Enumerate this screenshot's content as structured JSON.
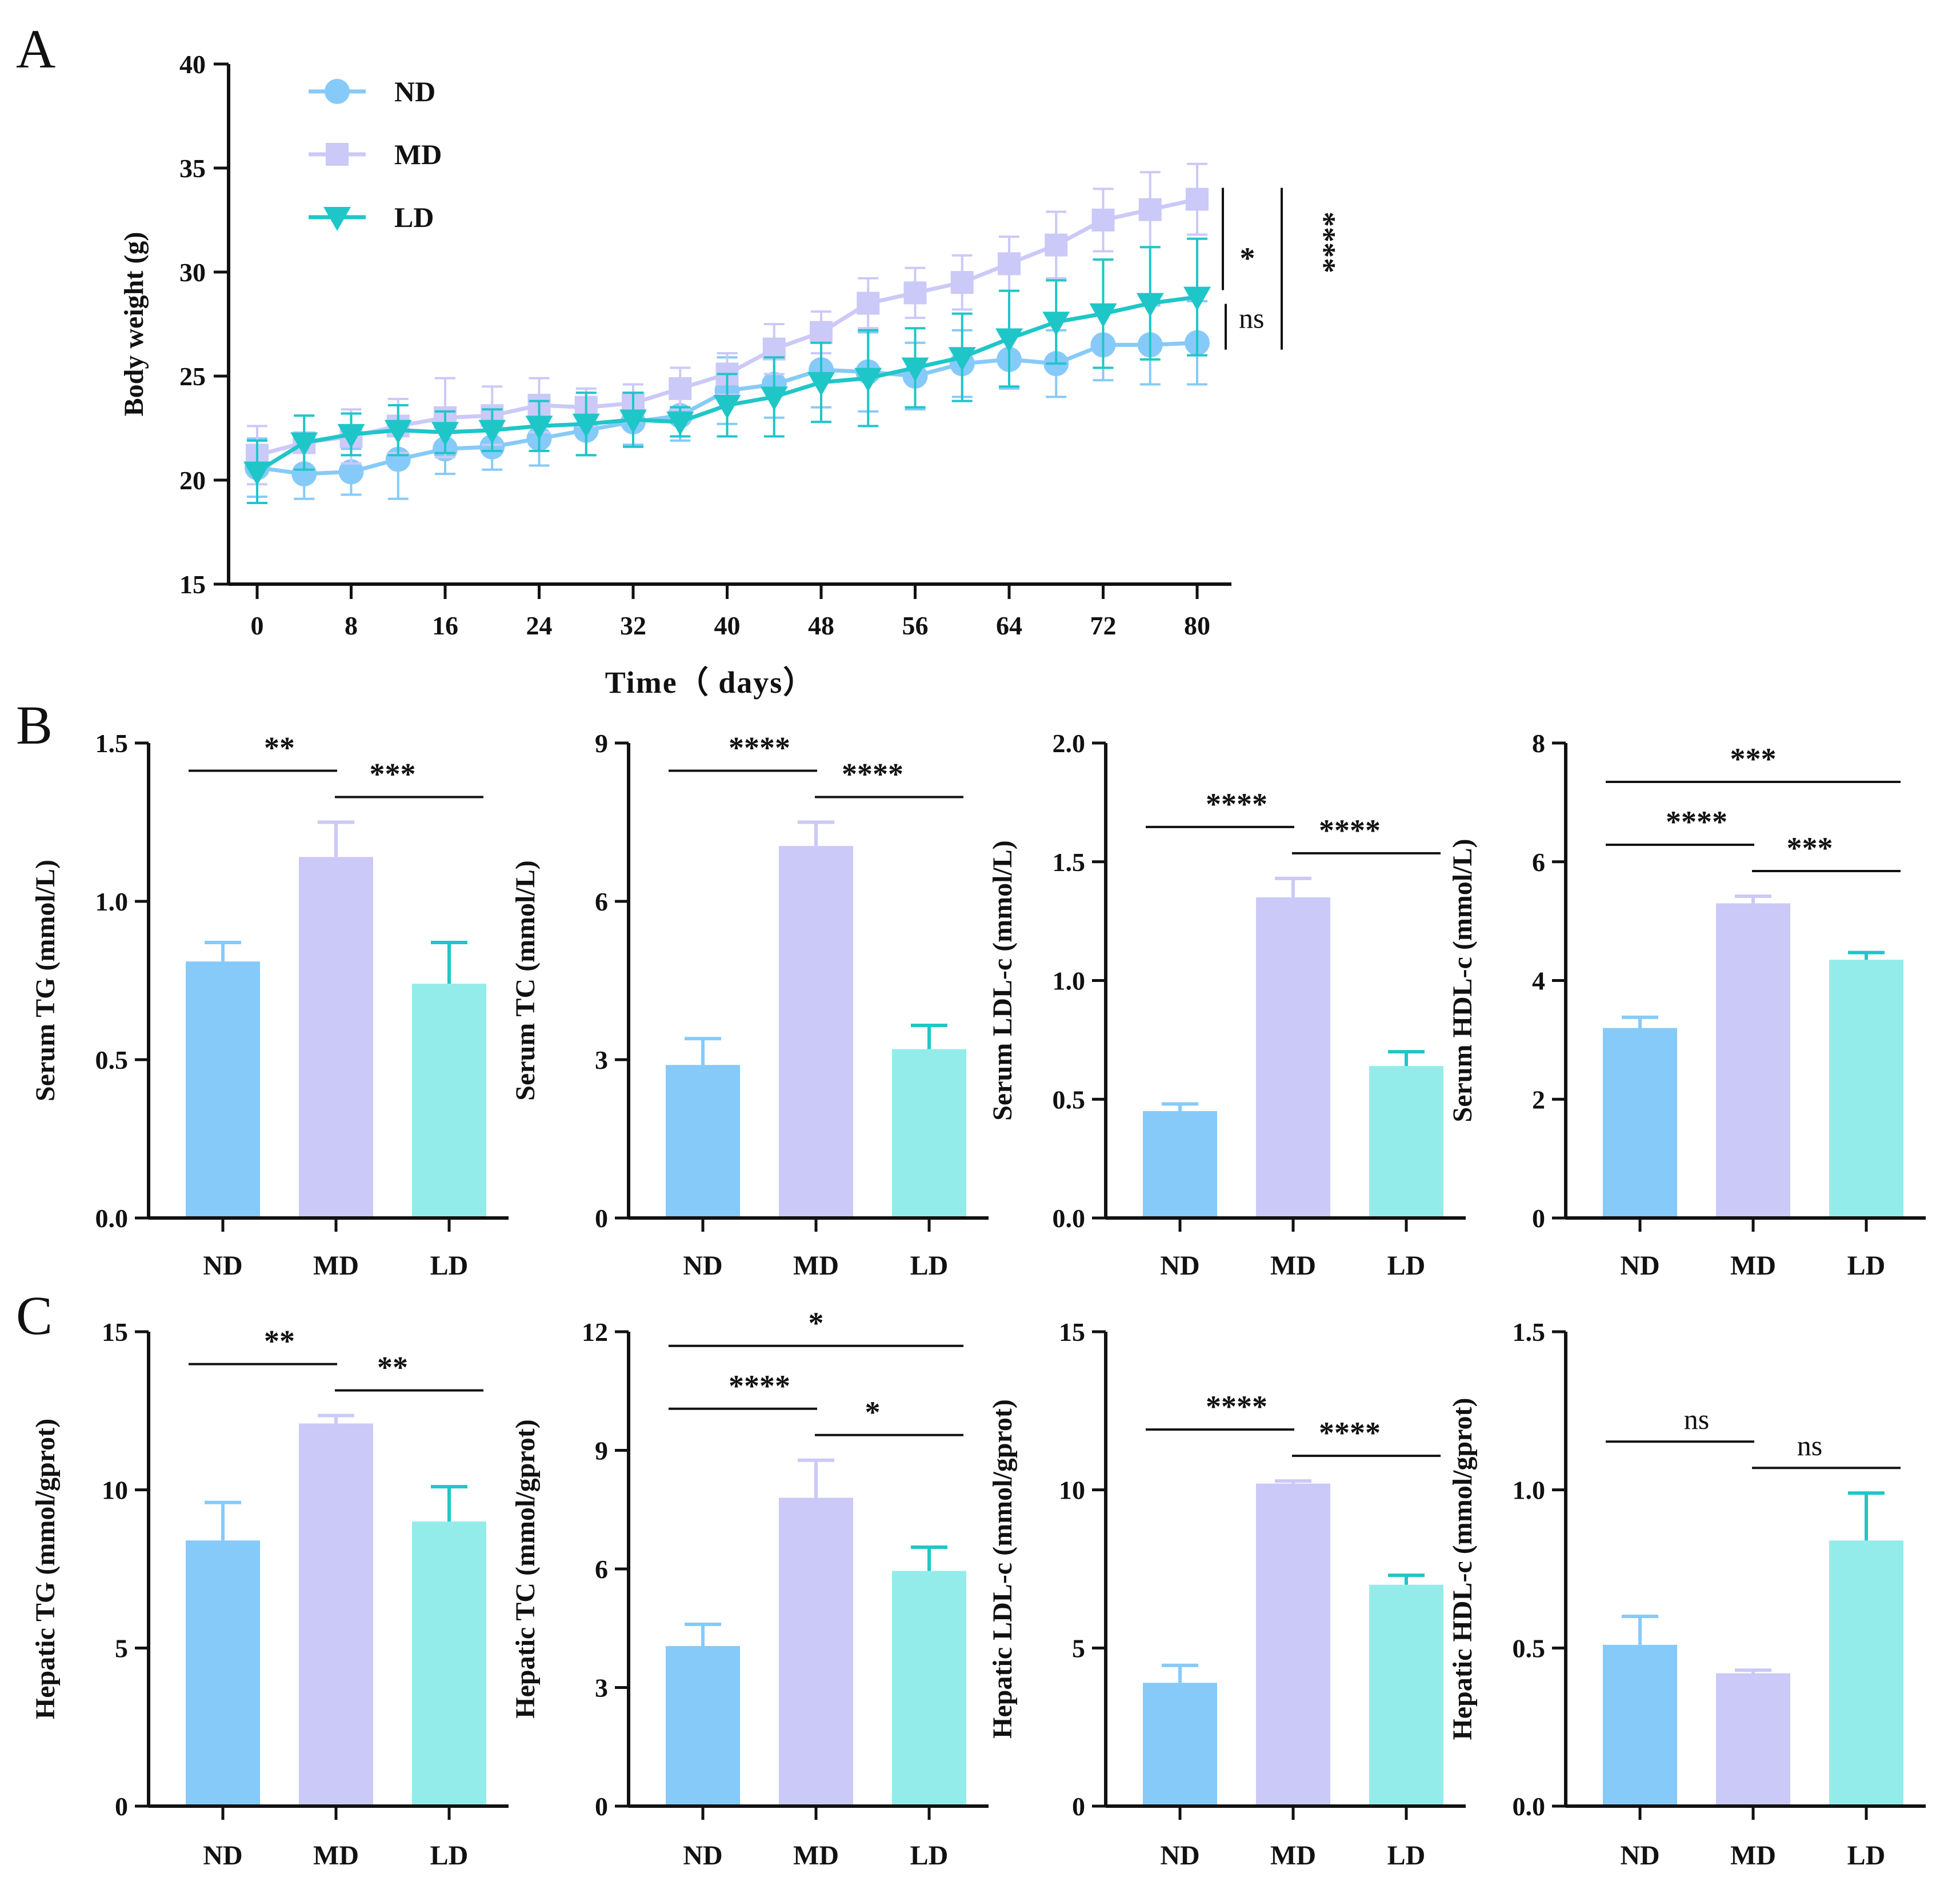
{
  "colors": {
    "ND": "#86CAF9",
    "MD": "#CBC9F8",
    "LD": "#1FC6C8",
    "LD_bar": "#94ECEA",
    "axis": "#111111"
  },
  "chart_data": [
    {
      "id": "A",
      "panel_label": "A",
      "type": "line",
      "xlabel": "Time（ days）",
      "ylabel": "Body weight (g)",
      "xlim": [
        0,
        80
      ],
      "ylim": [
        15,
        40
      ],
      "xticks": [
        0,
        8,
        16,
        24,
        32,
        40,
        48,
        56,
        64,
        72,
        80
      ],
      "yticks": [
        15,
        20,
        25,
        30,
        35,
        40
      ],
      "x": [
        0,
        4,
        8,
        12,
        16,
        20,
        24,
        28,
        32,
        36,
        40,
        44,
        48,
        52,
        56,
        60,
        64,
        68,
        72,
        76,
        80
      ],
      "series": [
        {
          "name": "ND",
          "marker": "circle",
          "values": [
            20.6,
            20.3,
            20.4,
            21.0,
            21.5,
            21.6,
            22.0,
            22.4,
            22.8,
            23.1,
            24.3,
            24.6,
            25.3,
            25.2,
            25.0,
            25.6,
            25.8,
            25.6,
            26.5,
            26.5,
            26.6
          ],
          "errors": [
            1.4,
            1.2,
            1.1,
            1.9,
            1.2,
            1.1,
            1.3,
            1.2,
            1.1,
            1.2,
            1.6,
            1.6,
            1.8,
            1.9,
            1.6,
            1.6,
            1.4,
            1.6,
            1.7,
            1.9,
            2.0
          ]
        },
        {
          "name": "MD",
          "marker": "square",
          "values": [
            21.2,
            21.8,
            22.1,
            22.6,
            23.0,
            23.1,
            23.6,
            23.5,
            23.7,
            24.4,
            25.1,
            26.3,
            27.1,
            28.5,
            29.0,
            29.5,
            30.4,
            31.3,
            32.5,
            33.0,
            33.5
          ],
          "errors": [
            1.4,
            1.3,
            1.3,
            1.3,
            1.9,
            1.4,
            1.3,
            0.9,
            0.9,
            1.0,
            1.0,
            1.2,
            1.0,
            1.2,
            1.2,
            1.3,
            1.3,
            1.6,
            1.5,
            1.8,
            1.7
          ]
        },
        {
          "name": "LD",
          "marker": "triangle-down",
          "values": [
            20.4,
            21.8,
            22.2,
            22.4,
            22.3,
            22.4,
            22.6,
            22.7,
            22.9,
            22.8,
            23.6,
            24.0,
            24.7,
            24.9,
            25.4,
            25.9,
            26.8,
            27.6,
            28.0,
            28.5,
            28.8
          ],
          "errors": [
            1.5,
            1.3,
            1.0,
            1.2,
            1.0,
            1.0,
            1.2,
            1.5,
            1.3,
            0.7,
            1.5,
            1.9,
            1.9,
            2.3,
            1.9,
            2.1,
            2.3,
            2.0,
            2.6,
            2.7,
            2.8
          ]
        }
      ],
      "legend": [
        "ND",
        "MD",
        "LD"
      ],
      "legend_position": "top-left",
      "annotations": [
        {
          "label": "*",
          "between": [
            "MD",
            "LD"
          ]
        },
        {
          "label": "ns",
          "between": [
            "LD",
            "ND"
          ]
        },
        {
          "label": "****",
          "between": [
            "MD",
            "ND"
          ]
        }
      ]
    },
    {
      "id": "B1",
      "panel_label": "B",
      "type": "bar",
      "ylabel": "Serum TG (mmol/L)",
      "categories": [
        "ND",
        "MD",
        "LD"
      ],
      "values": [
        0.81,
        1.14,
        0.74
      ],
      "errors": [
        0.06,
        0.11,
        0.13
      ],
      "ylim": [
        0,
        1.5
      ],
      "yticks": [
        0.0,
        0.5,
        1.0,
        1.5
      ],
      "tick_decimals": 1,
      "annotations": [
        {
          "from": 0,
          "to": 1,
          "label": "**"
        },
        {
          "from": 1,
          "to": 2,
          "label": "***"
        }
      ]
    },
    {
      "id": "B2",
      "panel_label": "",
      "type": "bar",
      "ylabel": "Serum TC (mmol/L)",
      "categories": [
        "ND",
        "MD",
        "LD"
      ],
      "values": [
        2.9,
        7.05,
        3.2
      ],
      "errors": [
        0.5,
        0.45,
        0.45
      ],
      "ylim": [
        0,
        9
      ],
      "yticks": [
        0,
        3,
        6,
        9
      ],
      "tick_decimals": 0,
      "annotations": [
        {
          "from": 0,
          "to": 1,
          "label": "****"
        },
        {
          "from": 1,
          "to": 2,
          "label": "****"
        }
      ]
    },
    {
      "id": "B3",
      "panel_label": "",
      "type": "bar",
      "ylabel": "Serum LDL-c (mmol/L)",
      "categories": [
        "ND",
        "MD",
        "LD"
      ],
      "values": [
        0.45,
        1.35,
        0.64
      ],
      "errors": [
        0.03,
        0.08,
        0.06
      ],
      "ylim": [
        0,
        2.0
      ],
      "yticks": [
        0.0,
        0.5,
        1.0,
        1.5,
        2.0
      ],
      "tick_decimals": 1,
      "annotations": [
        {
          "from": 0,
          "to": 1,
          "label": "****"
        },
        {
          "from": 1,
          "to": 2,
          "label": "****"
        }
      ]
    },
    {
      "id": "B4",
      "panel_label": "",
      "type": "bar",
      "ylabel": "Serum HDL-c (mmol/L)",
      "categories": [
        "ND",
        "MD",
        "LD"
      ],
      "values": [
        3.2,
        5.3,
        4.35
      ],
      "errors": [
        0.18,
        0.12,
        0.12
      ],
      "ylim": [
        0,
        8
      ],
      "yticks": [
        0,
        2,
        4,
        6,
        8
      ],
      "tick_decimals": 0,
      "annotations": [
        {
          "from": 0,
          "to": 2,
          "label": "***"
        },
        {
          "from": 0,
          "to": 1,
          "label": "****"
        },
        {
          "from": 1,
          "to": 2,
          "label": "***"
        }
      ]
    },
    {
      "id": "C1",
      "panel_label": "C",
      "type": "bar",
      "ylabel": "Hepatic TG (mmol/gprot)",
      "categories": [
        "ND",
        "MD",
        "LD"
      ],
      "values": [
        8.4,
        12.1,
        9.0
      ],
      "errors": [
        1.2,
        0.25,
        1.1
      ],
      "ylim": [
        0,
        15
      ],
      "yticks": [
        0,
        5,
        10,
        15
      ],
      "tick_decimals": 0,
      "annotations": [
        {
          "from": 0,
          "to": 1,
          "label": "**"
        },
        {
          "from": 1,
          "to": 2,
          "label": "**"
        }
      ]
    },
    {
      "id": "C2",
      "panel_label": "",
      "type": "bar",
      "ylabel": "Hepatic TC (mmol/gprot)",
      "categories": [
        "ND",
        "MD",
        "LD"
      ],
      "values": [
        4.05,
        7.8,
        5.95
      ],
      "errors": [
        0.55,
        0.95,
        0.6
      ],
      "ylim": [
        0,
        12
      ],
      "yticks": [
        0,
        3,
        6,
        9,
        12
      ],
      "tick_decimals": 0,
      "annotations": [
        {
          "from": 0,
          "to": 2,
          "label": "*"
        },
        {
          "from": 0,
          "to": 1,
          "label": "****"
        },
        {
          "from": 1,
          "to": 2,
          "label": "*"
        }
      ]
    },
    {
      "id": "C3",
      "panel_label": "",
      "type": "bar",
      "ylabel": "Hepatic LDL-c (mmol/gprot)",
      "categories": [
        "ND",
        "MD",
        "LD"
      ],
      "values": [
        3.9,
        10.2,
        7.0
      ],
      "errors": [
        0.55,
        0.08,
        0.3
      ],
      "ylim": [
        0,
        15
      ],
      "yticks": [
        0,
        5,
        10,
        15
      ],
      "tick_decimals": 0,
      "annotations": [
        {
          "from": 0,
          "to": 1,
          "label": "****"
        },
        {
          "from": 1,
          "to": 2,
          "label": "****"
        }
      ]
    },
    {
      "id": "C4",
      "panel_label": "",
      "type": "bar",
      "ylabel": "Hepatic HDL-c (mmol/gprot)",
      "categories": [
        "ND",
        "MD",
        "LD"
      ],
      "values": [
        0.51,
        0.42,
        0.84
      ],
      "errors": [
        0.09,
        0.01,
        0.15
      ],
      "ylim": [
        0,
        1.5
      ],
      "yticks": [
        0.0,
        0.5,
        1.0,
        1.5
      ],
      "tick_decimals": 1,
      "annotations": [
        {
          "from": 0,
          "to": 1,
          "label": "ns"
        },
        {
          "from": 1,
          "to": 2,
          "label": "ns"
        }
      ]
    }
  ]
}
